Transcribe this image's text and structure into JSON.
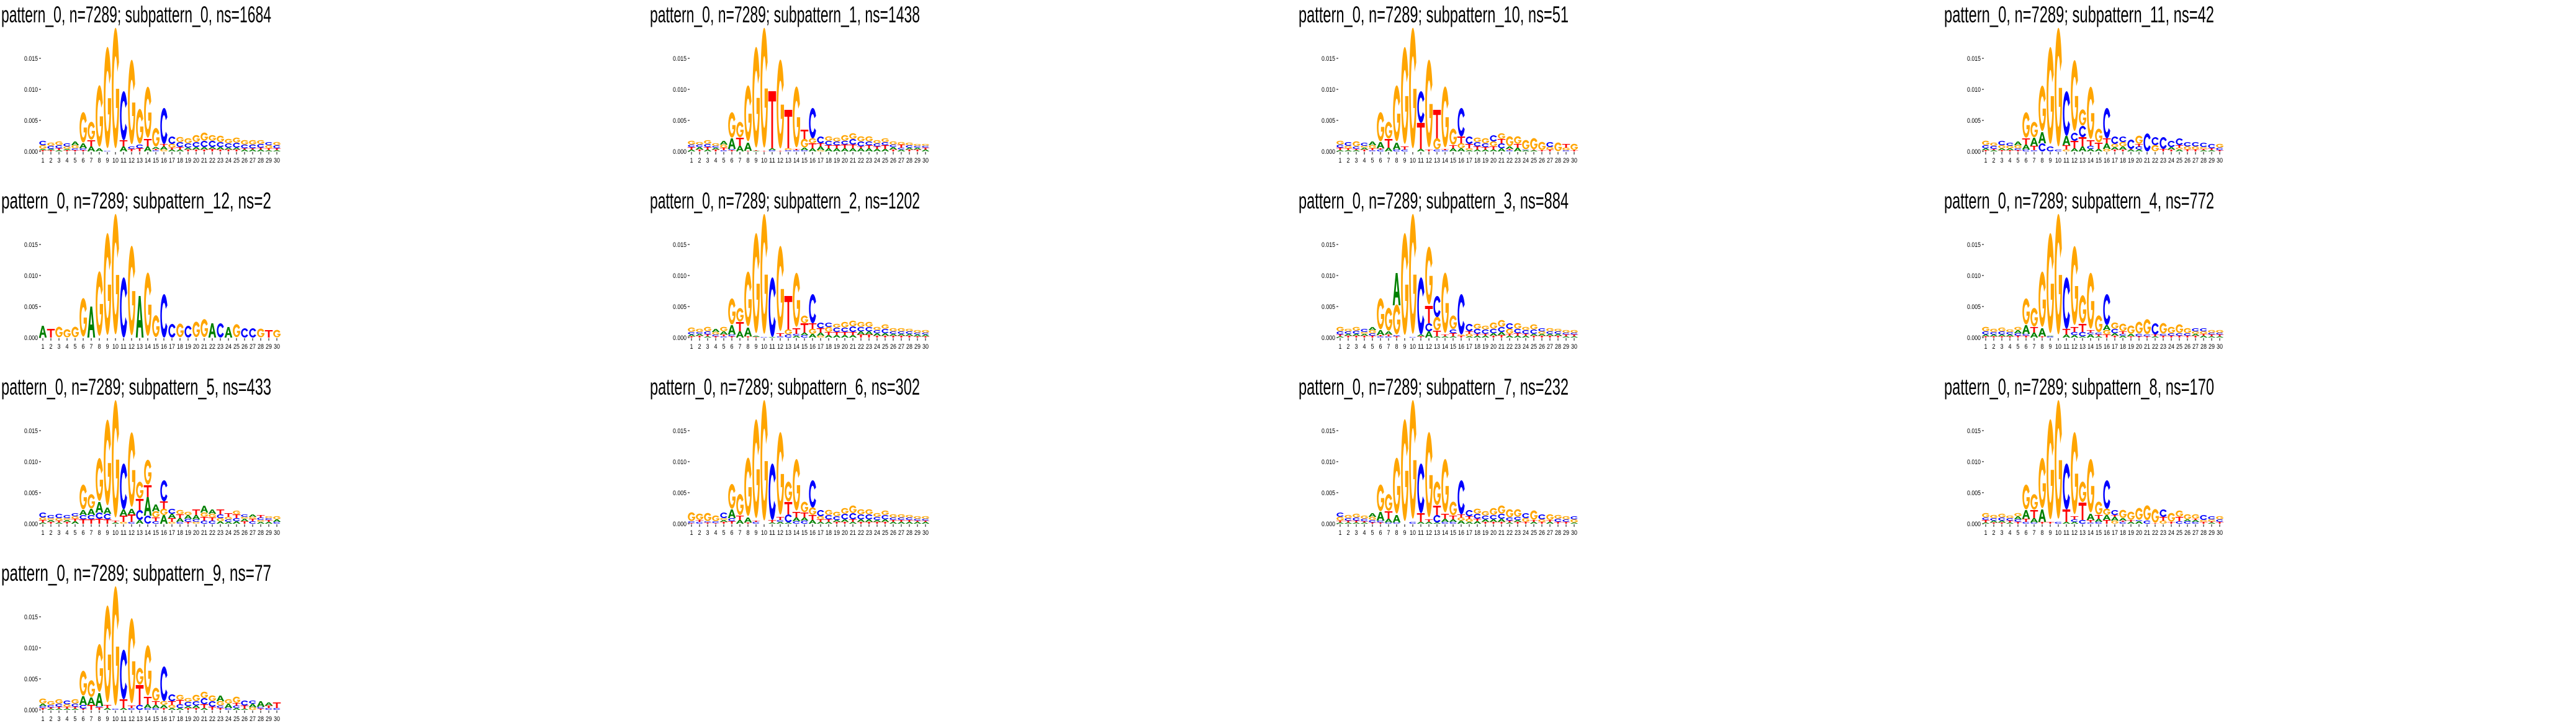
{
  "chart_data": {
    "type": "sequence-logo-grid",
    "layout": "4 columns, 4 rows",
    "height_unit": 0.0001,
    "encoding_note": "each position string lists letters bottom-to-top followed by height in height_unit",
    "colors": {
      "A": "#008000",
      "C": "#0000ff",
      "G": "#ffa500",
      "T": "#ff0000"
    },
    "y_ticks": [
      "0.000",
      "0.005",
      "0.010",
      "0.015"
    ],
    "y_tick_values": [
      0,
      0.005,
      0.01,
      0.015
    ],
    "x_ticks": [
      "1",
      "2",
      "3",
      "4",
      "5",
      "6",
      "7",
      "8",
      "9",
      "10",
      "11",
      "12",
      "13",
      "14",
      "15",
      "16",
      "17",
      "18",
      "19",
      "20",
      "21",
      "22",
      "23",
      "24",
      "25",
      "26",
      "27",
      "28",
      "29",
      "30"
    ],
    "ylim": [
      0,
      0.0195
    ],
    "panels": [
      {
        "title": "pattern_0, n=7289; subpattern_0, ns=1684",
        "positions": [
          "T2A2G6C7",
          "T2A2C5G5",
          "A2T3C5G6",
          "T2A2G4C5",
          "T2C3G5A6",
          "T2C3A8G49",
          "A8T10G29",
          "A5G99",
          "C1G163",
          "G194",
          "A8T10C79",
          "T4C4G136",
          "T5C6G56",
          "A8T12G82",
          "C2T2A3G30",
          "G3A5T4C58",
          "A3T3G6C12",
          "A3T4C8G8",
          "T3A3C7G8",
          "T3A4C8G11",
          "T3A4C10G13",
          "T4A3C10G9",
          "T3A4C8G10",
          "T3A3C7G7",
          "T3A3C8G8",
          "A3T2C6G7",
          "A3T2C6G7",
          "A3T3C6G6",
          "A2T3G5C5",
          "A2T3C5G5"
        ]
      },
      {
        "title": "pattern_0, n=7289; subpattern_1, ns=1438",
        "positions": [
          "A3T4C4G6",
          "T3A4C4G4",
          "A3T4C5G6",
          "T3A3C3G4",
          "C2T4G5A6",
          "T2C2A17G41",
          "A9T13G25",
          "T1A13G90",
          "A1T1G162",
          "T1G193",
          "C2A3T92",
          "T1G143",
          "C2G3T62",
          "C2T2G98",
          "C2A4G14T15",
          "A5T8G8C49",
          "G2A6T5C11",
          "A5T5C7G7",
          "A5T5C6G6",
          "A5T6C6G9",
          "A5T6C9G9",
          "A5T3C8G8",
          "A5T5C6G8",
          "A4T4C5G5",
          "A4T6C5G6",
          "T3A4C4G5",
          "A3C3T5G4",
          "T3A3C4G4",
          "T3A3C3G3",
          "A3T3C3G3"
        ]
      },
      {
        "title": "pattern_0, n=7289; subpattern_10, ns=51",
        "positions": [
          "A2T4C5G6",
          "A2T3G4C6",
          "A2T2C4G8",
          "T3A3G3C5",
          "C2T3G5A6",
          "C3T2A10G47",
          "A6T14G27",
          "C3A11G90",
          "C3T5G156",
          "G194",
          "A4T42C51",
          "T3G141",
          "C3G18T46",
          "C2T2G98",
          "A5T5G26",
          "A5G8T11C46",
          "A2G3T7C12",
          "A3T5C7G7",
          "A3T4C6G8",
          "A3T5G8C10",
          "A5C8T7G9",
          "C2T2A4G16",
          "A6T6G12",
          "A2C1G15",
          "A2T1G18",
          "T2G13",
          "T3G4C8",
          "G14",
          "C2G4T6",
          "T2G10"
        ]
      },
      {
        "title": "pattern_0, n=7289; subpattern_11, ns=42",
        "positions": [
          "T2A3C5G7",
          "A2T2C5G5",
          "T2A3G5C7",
          "T2A3G4C5",
          "T2C3G5A6",
          "C3A8T10G41",
          "C2T7A13G25",
          "C13A18G73",
          "C8G156",
          "C3G191",
          "G3T7A15C72",
          "A5T12C13G114",
          "A8T15C18G26",
          "A4C5T9G84",
          "A4T10G22",
          "G4A9T8C49",
          "T3A4G5C12",
          "T3A5G7C9",
          "A3T1C15",
          "A3C5T4G13",
          "C29",
          "G10C13",
          "T4C19",
          "T3A4C10",
          "A3G3T4C11",
          "T3G5C7",
          "T3G5C7",
          "A2T2G3C7",
          "A2T3C7",
          "T2C4G6"
        ]
      },
      {
        "title": "pattern_0, n=7289; subpattern_12, ns=2",
        "positions": [
          "A19",
          "T14",
          "G17",
          "G13",
          "G17",
          "G62",
          "A50",
          "G104",
          "G164",
          "G194",
          "C97",
          "G144",
          "A67",
          "G102",
          "G35",
          "C70",
          "C22",
          "G22",
          "C19",
          "G25",
          "G29",
          "A23",
          "C23",
          "A17",
          "G21",
          "C15",
          "C15",
          "G14",
          "T12",
          "G12"
        ]
      },
      {
        "title": "pattern_0, n=7289; subpattern_2, ns=1202",
        "positions": [
          "T2A3C4G7",
          "T3A3C3G5",
          "A2T3C5G7",
          "T2C3G4A5",
          "C2T3A5G7",
          "T2C3A15G42",
          "A10T15G22",
          "T2A14G88",
          "T1A2G161",
          "C1G193",
          "A1C96",
          "C2T5G137",
          "C5G8T54",
          "A3C3T9G87",
          "C4A4T15G12",
          "A6G8T9C47",
          "G3A5T7C9",
          "A4T5G8C7",
          "A4T5C7G6",
          "A4T5C7G9",
          "A4T5C9G9",
          "T5A5C7G8",
          "T5A5C7G8",
          "T3A4C5G5",
          "T3A4C7G7",
          "T3A3C4G5",
          "T3A3C4G5",
          "T3A3C4G4",
          "T2A3C3G4",
          "T2A3C3G4"
        ]
      },
      {
        "title": "pattern_0, n=7289; subpattern_3, ns=884",
        "positions": [
          "A2T3C5G7",
          "T3A3C4G4",
          "T3A3C5G6",
          "T3A3G3C5",
          "T3C4G5A5",
          "C2T2A8G50",
          "C2T3A5G37",
          "T2C2G48A52",
          "G164",
          "C1G193",
          "T2A3C92",
          "A10C13T28G93",
          "A2T9G22C34",
          "A2T3G97",
          "A2T5C6G22",
          "T3G2C65",
          "A2G4T4C12",
          "A3T3C8G8",
          "A3T3C7G6",
          "T3A4C7G10",
          "T4A5C8G11",
          "A3T3G8C9",
          "A3T4C7G9",
          "A3T3C6G5",
          "T3A3C7G8",
          "T3A3G4C5",
          "T3A3C4G5",
          "T3A3C4G4",
          "A2T3C3G4",
          "A2T3C3G4"
        ]
      },
      {
        "title": "pattern_0, n=7289; subpattern_4, ns=772",
        "positions": [
          "T2A3C5G7",
          "T2A3C4G5",
          "T2A3C5G6",
          "T2A3C4G4",
          "T3C4A5G5",
          "T3C3A14G42",
          "A8T9G30",
          "T2A13G89",
          "C2A1G161",
          "G194",
          "A5T9C83",
          "A4C5T8G127",
          "A2C7T13G45",
          "A5C3T4G90",
          "A2T3C3G27",
          "T5G7A8C50",
          "T3A4C7G10",
          "A3C3T4G12",
          "T2A4G13",
          "T2C4G19",
          "T2C3G24",
          "A2T3C18",
          "T3C3G17",
          "T3C4G10",
          "T3C4G14",
          "T3C4G8",
          "T3A3G4C5",
          "A3T3G4C5",
          "A2T3C3G4",
          "A2T3C3G4"
        ]
      },
      {
        "title": "pattern_0, n=7289; subpattern_5, ns=433",
        "positions": [
          "A2T4G4C8",
          "T3A3G3C5",
          "A2T3G4C7",
          "T3A3G3C5",
          "A4T4G4C5",
          "T7C7A8G40",
          "T7C7A10G23",
          "T8C10A17G69",
          "T7C9A10G138",
          "A2T3G189",
          "G3T10A10C74",
          "C3T12A9G120",
          "A6C16T18G27",
          "C13A30T19G40",
          "C4T6G10A11",
          "A14G10T12C34",
          "G3T6A7C8",
          "C3A6T6G7",
          "T3C5A6G5",
          "G3C4A7T9",
          "C5T6G7A11",
          "C5T5G6A7",
          "A4G5C6T8",
          "A3C4G4T6",
          "A4C5T6G6",
          "T4A4G3C4",
          "C4T4G3A4",
          "A3G3C4T4",
          "A3T3C3G3",
          "C3A4G5"
        ]
      },
      {
        "title": "pattern_0, n=7289; subpattern_6, ns=302",
        "positions": [
          "T1C3G14",
          "C3T3G10",
          "T2C2G13",
          "T1C3G9",
          "T3A3G3C9",
          "T4C5A14G40",
          "A6T7G34",
          "T2A8G94",
          "C3T2G159",
          "G194",
          "A2T4C91",
          "A3C3T5G133",
          "A2C13T20G32",
          "C4A6T9G83",
          "C5A5T8G17",
          "A6T8G12C44",
          "A3T4G5C10",
          "A3T4C7G8",
          "T3A3C6G7",
          "T3A4C9G9",
          "A3T4C10G12",
          "T3A4C8G8",
          "T3A4C8G8",
          "T3A3C5G6",
          "T3A4C7G7",
          "A3T3C4G5",
          "A3T3C4G5",
          "A3T3C4G4",
          "A3T2C3G4",
          "A3T2C3G4"
        ]
      },
      {
        "title": "pattern_0, n=7289; subpattern_7, ns=232",
        "positions": [
          "A2T3G6C7",
          "A2T3C4G5",
          "A2T3C5G6",
          "A2T2C4G5",
          "T2C4G5A6",
          "T2C3A14G43",
          "C2A6T12G27",
          "C2A12G90",
          "G164",
          "C3G191",
          "A3T14C80",
          "A3T4G137",
          "A2C12T15G38",
          "C3A5T8G86",
          "C3A4T6G22",
          "A5G5T5C55",
          "A3G5T4C10",
          "A4T4C8G8",
          "T3A4C6G7",
          "T3A4C7G11",
          "T3A5C8G13",
          "A2T3C5G13",
          "T3A3C5G12",
          "T3G6C8",
          "A3T3G15",
          "T3G4C8",
          "A3T3G9",
          "T3C5G6",
          "T3C4G5",
          "A2G5C5"
        ]
      },
      {
        "title": "pattern_0, n=7289; subpattern_8, ns=170",
        "positions": [
          "A2T4C4G7",
          "T2A3C4G5",
          "T2A3C5G6",
          "A2T3C4G4",
          "T3C4A5G5",
          "C3T5A14G40",
          "C2A7T13G25",
          "T3A20G81",
          "T3G161",
          "C3G191",
          "A3T20C74",
          "A3C4T5G132",
          "C6T28G33",
          "C2T4A10G86",
          "C3A5T6G21",
          "T6A8G10C46",
          "G5A6T3C8",
          "C3T2A4G13",
          "A3T3G13",
          "A4C2G19",
          "C5G24",
          "T1G22",
          "G5T6C12",
          "T3G14",
          "C4T7G10",
          "C4A3G8",
          "C3A3T2G7",
          "T3G3C8",
          "A2T2G3C5",
          "T3C4G5"
        ]
      },
      {
        "title": "pattern_0, n=7289; subpattern_9, ns=77",
        "positions": [
          "T3C3A4G8",
          "A2T2C4G6",
          "A2T3C5G7",
          "A2T3G4C6",
          "A2T3C5G7",
          "T2C6A14G40",
          "T8A12G27",
          "T4C2A21G77",
          "A3T5G156",
          "C2G192",
          "A3T14C80",
          "C3T4G137",
          "C8T32G27",
          "C3A6T12G81",
          "C3A5T6G21",
          "T3A5G6C56",
          "A3G5T6C11",
          "A3C6T7G8",
          "T3A3C7G6",
          "T3A4C7G10",
          "A3T6C10G10",
          "T5C9G9",
          "T3C4G7A9",
          "C3A7G7",
          "A3C4T4G10",
          "A2T5C8",
          "G4A6C5",
          "T2C3A9",
          "C3T4A5",
          "C3T9"
        ]
      }
    ]
  }
}
